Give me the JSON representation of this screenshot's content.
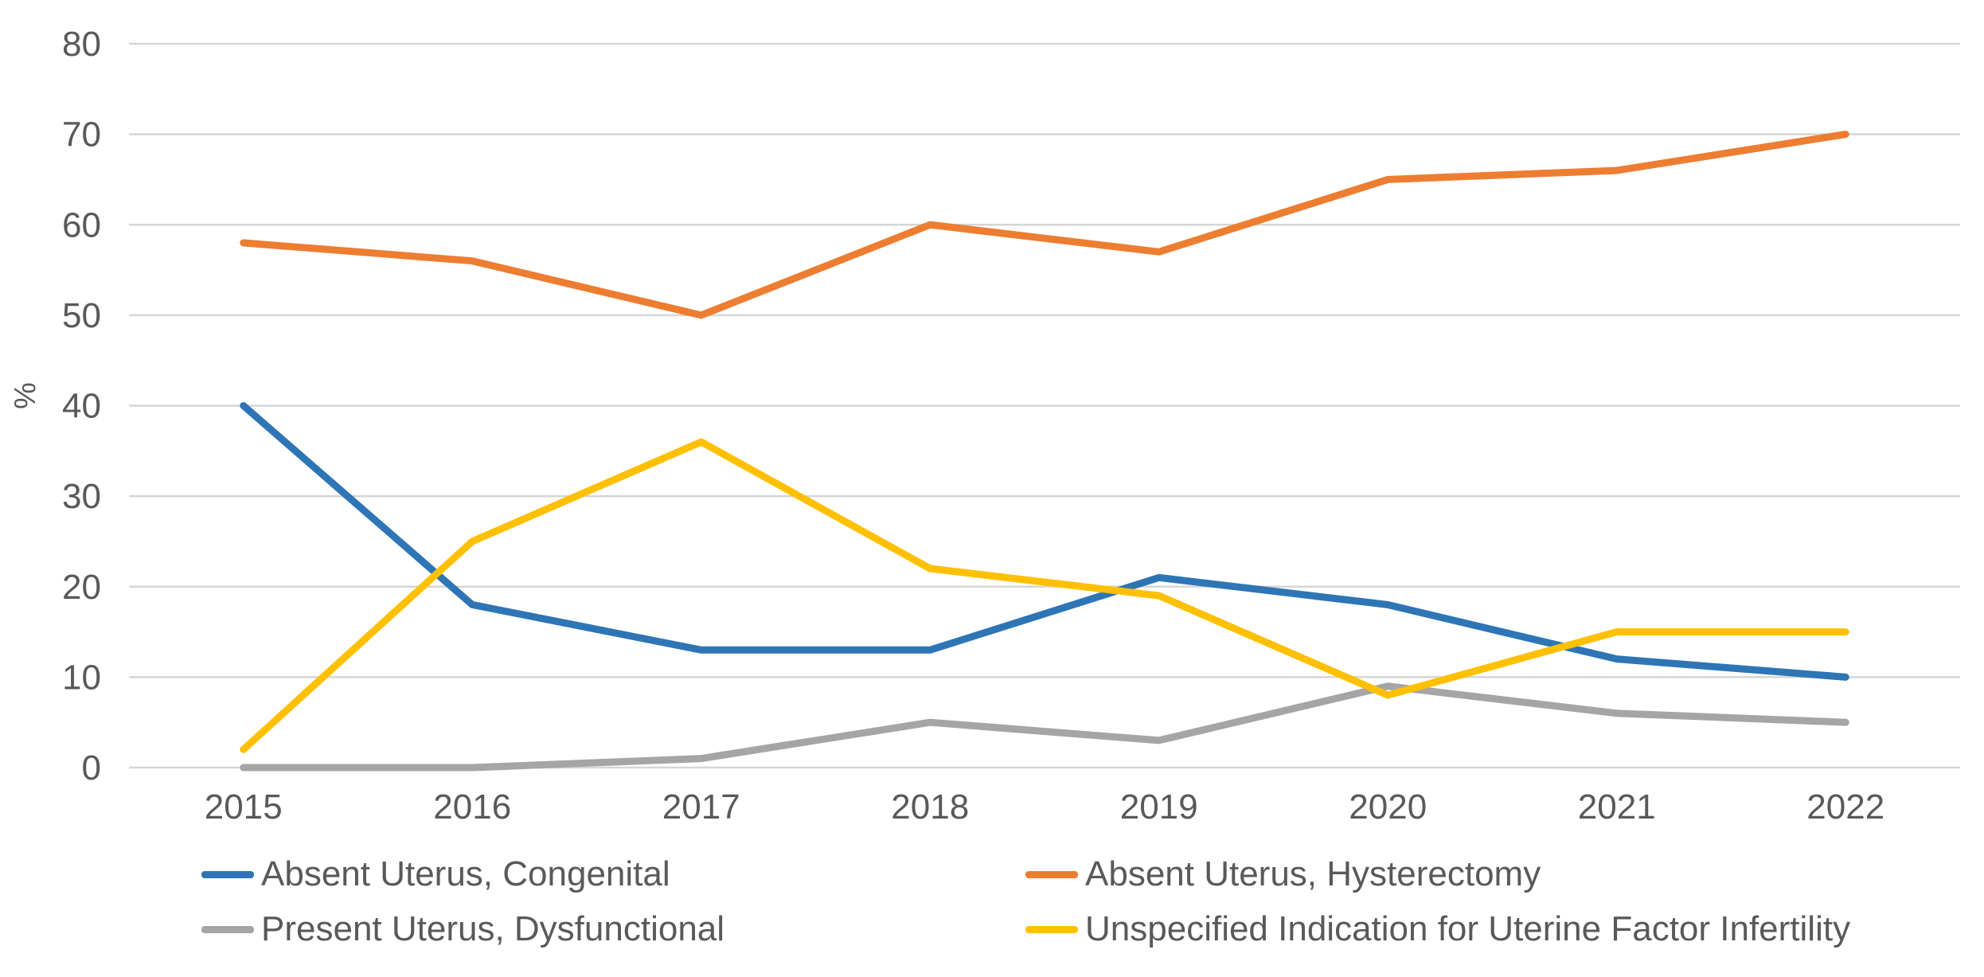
{
  "chart_data": {
    "type": "line",
    "title": "",
    "categories": [
      "2015",
      "2016",
      "2017",
      "2018",
      "2019",
      "2020",
      "2021",
      "2022"
    ],
    "series": [
      {
        "name": "Absent Uterus, Congenital",
        "color": "#2E75B6",
        "values": [
          40,
          18,
          13,
          13,
          21,
          18,
          12,
          10
        ]
      },
      {
        "name": "Absent Uterus, Hysterectomy",
        "color": "#ED7D31",
        "values": [
          58,
          56,
          50,
          60,
          57,
          65,
          66,
          70
        ]
      },
      {
        "name": "Present Uterus, Dysfunctional",
        "color": "#A5A5A5",
        "values": [
          0,
          0,
          1,
          5,
          3,
          9,
          6,
          5
        ]
      },
      {
        "name": "Unspecified Indication for Uterine Factor Infertility",
        "color": "#FFC000",
        "values": [
          2,
          25,
          36,
          22,
          19,
          8,
          15,
          15
        ]
      }
    ],
    "xlabel": "",
    "ylabel": "%",
    "ylim": [
      0,
      80
    ],
    "ytick_step": 10,
    "grid": true,
    "gridline_color": "#D6D6D6",
    "axis_text_color": "#595959",
    "background": "#FFFFFF",
    "legend_position": "bottom, two columns, two rows"
  }
}
